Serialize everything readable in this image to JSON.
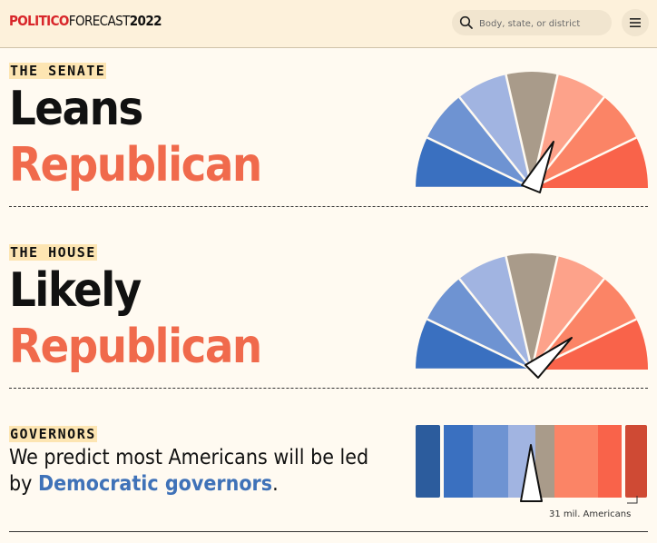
{
  "header": {
    "logo_brand": "POLITICO",
    "logo_forecast": "FORECAST",
    "logo_year": "2022",
    "search_placeholder": "Body, state, or district",
    "search_icon": "search-icon",
    "menu_icon": "hamburger-menu-icon"
  },
  "senate": {
    "tag": "THE SENATE",
    "rating_line1": "Leans",
    "rating_line2": "Republican",
    "needle_position": "leans-republican"
  },
  "house": {
    "tag": "THE HOUSE",
    "rating_line1": "Likely",
    "rating_line2": "Republican",
    "needle_position": "likely-republican"
  },
  "governors": {
    "tag": "GOVERNORS",
    "text_before": "We predict most Americans will be led by ",
    "text_highlight": "Democratic governors",
    "text_after": ".",
    "scale_label": "31 mil. Americans"
  },
  "colors": {
    "header_bg": "#fdf1db",
    "page_bg": "#fffaf1",
    "republican_red": "#f06a4c",
    "democratic_blue": "#3f72b8",
    "tag_highlight": "#fde5b2",
    "gauge_colors": [
      "#3a70c0",
      "#6e93d2",
      "#a1b4e1",
      "#a99b8a",
      "#fda28a",
      "#fb8466",
      "#f9634a"
    ]
  }
}
